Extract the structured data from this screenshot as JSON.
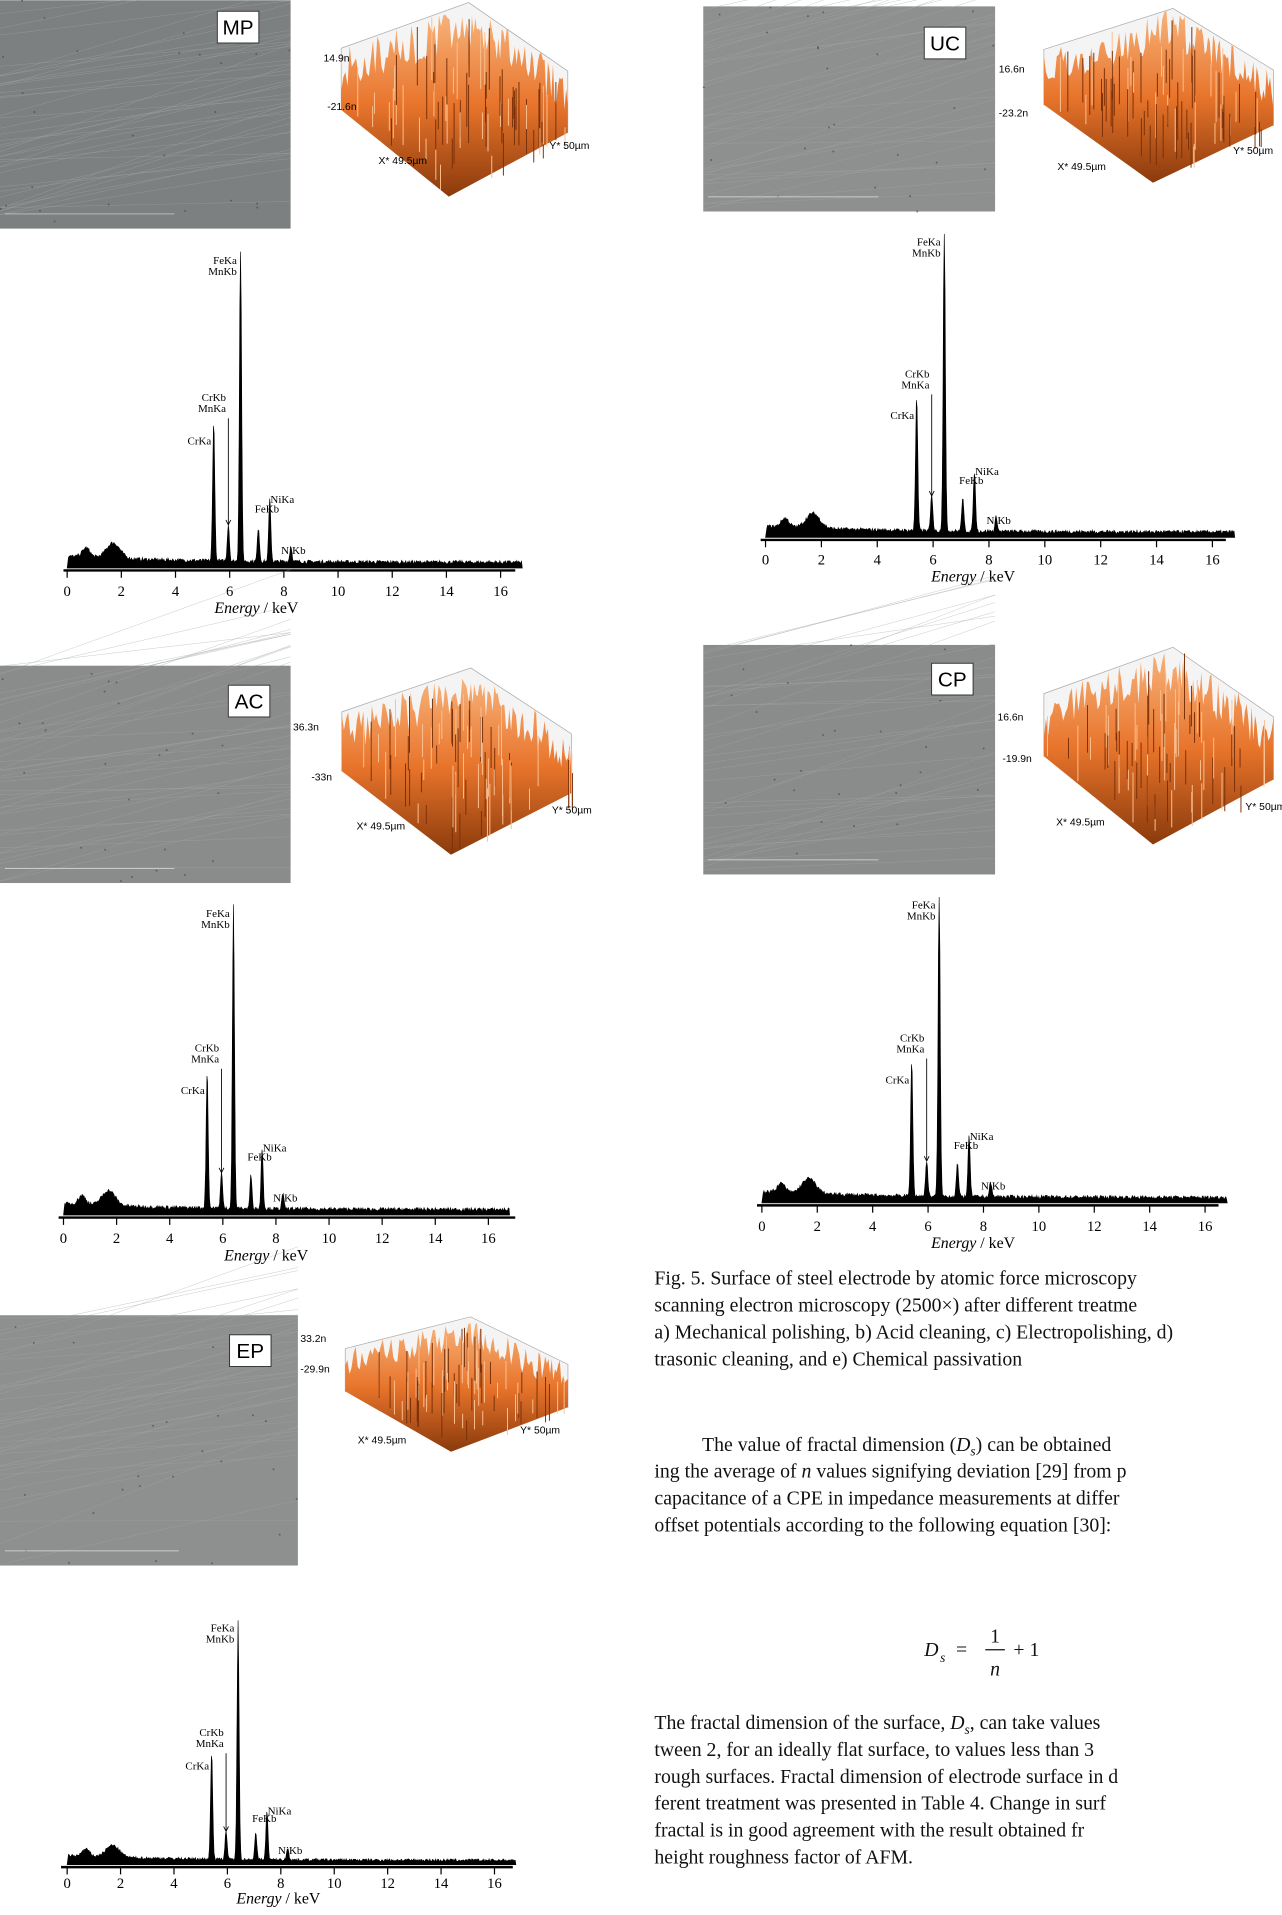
{
  "panels": [
    {
      "label": "MP",
      "afm": {
        "z_max": "14.9n",
        "z_min": "-21.6n",
        "x_axis": "X* 49.5µm",
        "y_axis": "Y* 50µm"
      },
      "eds": {
        "peaks": [
          "FeKa",
          "MnKb",
          "CrKb",
          "MnKa",
          "CrKa",
          "NiKa",
          "FeKb",
          "NiKb"
        ],
        "x_ticks": [
          0,
          2,
          4,
          6,
          8,
          10,
          12,
          14,
          16
        ],
        "x_label": "Energy",
        "x_unit": "/ keV"
      }
    },
    {
      "label": "UC",
      "afm": {
        "z_max": "16.6n",
        "z_min": "-23.2n",
        "x_axis": "X* 49.5µm",
        "y_axis": "Y* 50µm"
      },
      "eds": {
        "peaks": [
          "FeKa",
          "MnKb",
          "CrKb",
          "MnKa",
          "CrKa",
          "NiKa",
          "FeKb",
          "NiKb"
        ],
        "x_ticks": [
          0,
          2,
          4,
          6,
          8,
          10,
          12,
          14,
          16
        ],
        "x_label": "Energy",
        "x_unit": "/ keV"
      }
    },
    {
      "label": "AC",
      "afm": {
        "z_max": "36.3n",
        "z_min": "-33n",
        "x_axis": "X* 49.5µm",
        "y_axis": "Y* 50µm"
      },
      "eds": {
        "peaks": [
          "FeKa",
          "MnKb",
          "CrKb",
          "MnKa",
          "CrKa",
          "NiKa",
          "FeKb",
          "NiKb"
        ],
        "x_ticks": [
          0,
          2,
          4,
          6,
          8,
          10,
          12,
          14,
          16
        ],
        "x_label": "Energy",
        "x_unit": "/ keV"
      }
    },
    {
      "label": "CP",
      "afm": {
        "z_max": "16.6n",
        "z_min": "-19.9n",
        "x_axis": "X* 49.5µm",
        "y_axis": "Y* 50µm"
      },
      "eds": {
        "peaks": [
          "FeKa",
          "MnKb",
          "CrKb",
          "MnKa",
          "CrKa",
          "NiKa",
          "FeKb",
          "NiKb"
        ],
        "x_ticks": [
          0,
          2,
          4,
          6,
          8,
          10,
          12,
          14,
          16
        ],
        "x_label": "Energy",
        "x_unit": "/ keV"
      }
    },
    {
      "label": "EP",
      "afm": {
        "z_max": "33.2n",
        "z_min": "-29.9n",
        "x_axis": "X* 49.5µm",
        "y_axis": "Y* 50µm"
      },
      "eds": {
        "peaks": [
          "FeKa",
          "MnKb",
          "CrKb",
          "MnKa",
          "CrKa",
          "NiKa",
          "FeKb",
          "NiKb"
        ],
        "x_ticks": [
          0,
          2,
          4,
          6,
          8,
          10,
          12,
          14,
          16
        ],
        "x_label": "Energy",
        "x_unit": "/ keV"
      }
    }
  ],
  "caption": [
    "Fig. 5. Surface of steel electrode by atomic force microscopy",
    "scanning electron microscopy (2500×) after different treatme",
    "a) Mechanical polishing, b) Acid cleaning, c) Electropolishing, d)",
    "trasonic cleaning, and e) Chemical passivation"
  ],
  "paragraph_1": [
    [
      "The value of fractal dimension (",
      "D",
      "s",
      ") can be obtained"
    ],
    [
      "ing the average of ",
      "n",
      " values signifying deviation [29] from p"
    ],
    [
      "capacitance of a CPE in impedance measurements at differ"
    ],
    [
      "offset potentials according to the following equation [30]:"
    ]
  ],
  "equation": {
    "lhs": "D",
    "lhs_sub": "s",
    "eq": "=",
    "numerator": "1",
    "denominator": "n",
    "rest": "+ 1"
  },
  "paragraph_2": [
    [
      "The fractal dimension of the surface, ",
      "D",
      "s",
      ", can take values"
    ],
    [
      "tween 2, for an ideally flat surface, to values less than 3"
    ],
    [
      "rough surfaces. Fractal dimension of electrode surface in d"
    ],
    [
      "ferent treatment was presented in Table 4. Change in surf"
    ],
    [
      "fractal is in good agreement with the result obtained fr"
    ],
    [
      "height roughness factor of AFM."
    ]
  ]
}
